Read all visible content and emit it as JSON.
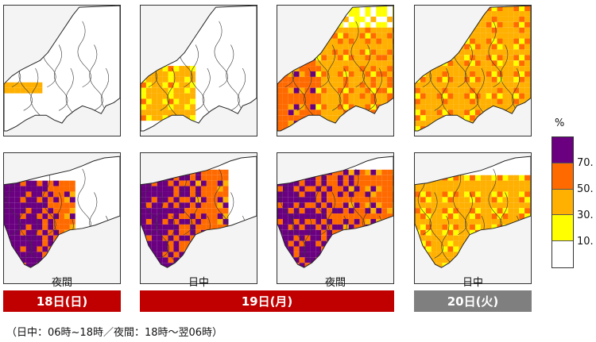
{
  "periods": {
    "p1": "夜間",
    "p2": "日中",
    "p3": "夜間",
    "p4": "日中"
  },
  "days": {
    "d1": "18日(日)",
    "d2": "19日(月)",
    "d3": "20日(火)"
  },
  "legend": {
    "unit": "%",
    "labels": [
      "70.",
      "50.",
      "30.",
      "10."
    ],
    "colors": [
      "#6a0080",
      "#ff6a00",
      "#ffb000",
      "#ffff00",
      "#ffffff"
    ]
  },
  "footnote": "（日中：06時~18時／夜間：18時～翌06時）",
  "colors": {
    "ocean": "#f4f4f4",
    "red_bar": "#c00000",
    "gray_bar": "#7f7f7f"
  }
}
